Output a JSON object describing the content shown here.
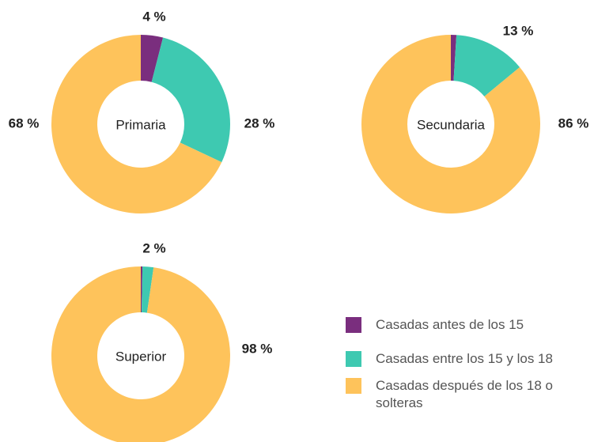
{
  "chart_data": [
    {
      "type": "pie",
      "title": "Primaria",
      "values": [
        4,
        28,
        68
      ],
      "value_labels": [
        "4 %",
        "28 %",
        "68 %"
      ]
    },
    {
      "type": "pie",
      "title": "Secundaria",
      "values": [
        1,
        13,
        86
      ],
      "value_labels": [
        null,
        "13 %",
        "86 %"
      ]
    },
    {
      "type": "pie",
      "title": "Superior",
      "values": [
        0.3,
        2,
        98
      ],
      "value_labels": [
        null,
        "2 %",
        "98 %"
      ]
    }
  ],
  "legend": {
    "labels": [
      "Casadas antes de los 15",
      "Casadas entre los 15 y los 18",
      "Casadas después de los 18 o solteras"
    ],
    "colors": [
      "#7a2e7e",
      "#3ec9b1",
      "#fec35b"
    ]
  }
}
